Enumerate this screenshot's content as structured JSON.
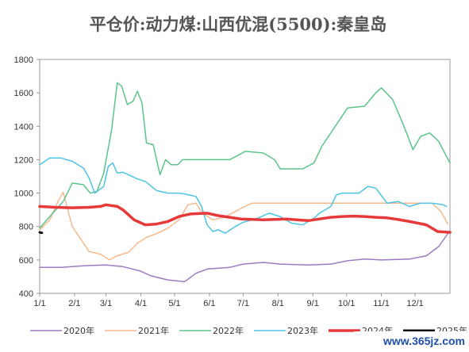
{
  "chart_data": {
    "type": "line",
    "title": "平仓价:动力煤:山西优混(5500):秦皇岛",
    "xlabel": "",
    "ylabel": "",
    "ylim": [
      400,
      1800
    ],
    "yticks": [
      400,
      600,
      800,
      1000,
      1200,
      1400,
      1600,
      1800
    ],
    "xlim": [
      1,
      366
    ],
    "xticks": [
      {
        "day": 1,
        "label": "1/1"
      },
      {
        "day": 32,
        "label": "2/1"
      },
      {
        "day": 60,
        "label": "3/1"
      },
      {
        "day": 91,
        "label": "4/1"
      },
      {
        "day": 121,
        "label": "5/1"
      },
      {
        "day": 152,
        "label": "6/1"
      },
      {
        "day": 182,
        "label": "7/1"
      },
      {
        "day": 213,
        "label": "8/1"
      },
      {
        "day": 244,
        "label": "9/1"
      },
      {
        "day": 274,
        "label": "10/1"
      },
      {
        "day": 305,
        "label": "11/1"
      },
      {
        "day": 335,
        "label": "12/1"
      }
    ],
    "grid": {
      "x": false,
      "y": false
    },
    "legend_position": "bottom",
    "x_unit": "day of year",
    "series": [
      {
        "name": "2020年",
        "color": "#9b7bc2",
        "width": 1.5,
        "points": [
          [
            1,
            555
          ],
          [
            20,
            555
          ],
          [
            40,
            565
          ],
          [
            60,
            570
          ],
          [
            75,
            560
          ],
          [
            90,
            535
          ],
          [
            100,
            505
          ],
          [
            115,
            480
          ],
          [
            130,
            470
          ],
          [
            140,
            520
          ],
          [
            150,
            545
          ],
          [
            170,
            555
          ],
          [
            182,
            575
          ],
          [
            200,
            585
          ],
          [
            215,
            575
          ],
          [
            240,
            570
          ],
          [
            260,
            575
          ],
          [
            275,
            595
          ],
          [
            290,
            605
          ],
          [
            305,
            600
          ],
          [
            330,
            605
          ],
          [
            345,
            625
          ],
          [
            356,
            680
          ],
          [
            366,
            775
          ]
        ]
      },
      {
        "name": "2021年",
        "color": "#f5b98c",
        "width": 1.5,
        "points": [
          [
            1,
            780
          ],
          [
            10,
            840
          ],
          [
            18,
            960
          ],
          [
            22,
            1005
          ],
          [
            26,
            900
          ],
          [
            30,
            800
          ],
          [
            38,
            720
          ],
          [
            45,
            650
          ],
          [
            55,
            635
          ],
          [
            63,
            600
          ],
          [
            70,
            625
          ],
          [
            80,
            645
          ],
          [
            88,
            700
          ],
          [
            96,
            735
          ],
          [
            106,
            760
          ],
          [
            115,
            790
          ],
          [
            125,
            840
          ],
          [
            133,
            930
          ],
          [
            140,
            940
          ],
          [
            146,
            880
          ],
          [
            155,
            840
          ],
          [
            165,
            855
          ],
          [
            175,
            890
          ],
          [
            182,
            915
          ],
          [
            190,
            940
          ],
          [
            210,
            940
          ],
          [
            230,
            940
          ],
          [
            250,
            940
          ],
          [
            270,
            940
          ],
          [
            290,
            940
          ],
          [
            310,
            940
          ],
          [
            330,
            940
          ],
          [
            350,
            940
          ],
          [
            358,
            890
          ],
          [
            364,
            815
          ]
        ]
      },
      {
        "name": "2022年",
        "color": "#5bc48a",
        "width": 1.5,
        "points": [
          [
            1,
            790
          ],
          [
            10,
            860
          ],
          [
            22,
            950
          ],
          [
            30,
            1060
          ],
          [
            40,
            1050
          ],
          [
            46,
            1000
          ],
          [
            52,
            1010
          ],
          [
            58,
            1120
          ],
          [
            65,
            1380
          ],
          [
            70,
            1660
          ],
          [
            74,
            1640
          ],
          [
            79,
            1530
          ],
          [
            84,
            1550
          ],
          [
            88,
            1610
          ],
          [
            92,
            1540
          ],
          [
            96,
            1300
          ],
          [
            102,
            1290
          ],
          [
            108,
            1110
          ],
          [
            113,
            1200
          ],
          [
            118,
            1170
          ],
          [
            124,
            1170
          ],
          [
            128,
            1200
          ],
          [
            150,
            1200
          ],
          [
            170,
            1200
          ],
          [
            184,
            1250
          ],
          [
            200,
            1240
          ],
          [
            210,
            1200
          ],
          [
            215,
            1145
          ],
          [
            235,
            1145
          ],
          [
            245,
            1180
          ],
          [
            252,
            1280
          ],
          [
            262,
            1380
          ],
          [
            270,
            1460
          ],
          [
            275,
            1510
          ],
          [
            290,
            1520
          ],
          [
            300,
            1600
          ],
          [
            305,
            1630
          ],
          [
            315,
            1560
          ],
          [
            322,
            1450
          ],
          [
            328,
            1350
          ],
          [
            333,
            1260
          ],
          [
            340,
            1340
          ],
          [
            348,
            1360
          ],
          [
            356,
            1310
          ],
          [
            366,
            1180
          ]
        ]
      },
      {
        "name": "2023年",
        "color": "#4cc4e6",
        "width": 1.5,
        "points": [
          [
            1,
            1170
          ],
          [
            10,
            1210
          ],
          [
            20,
            1210
          ],
          [
            30,
            1190
          ],
          [
            40,
            1150
          ],
          [
            45,
            1090
          ],
          [
            50,
            1000
          ],
          [
            58,
            1040
          ],
          [
            62,
            1160
          ],
          [
            66,
            1180
          ],
          [
            70,
            1120
          ],
          [
            75,
            1125
          ],
          [
            80,
            1110
          ],
          [
            88,
            1085
          ],
          [
            95,
            1070
          ],
          [
            105,
            1015
          ],
          [
            115,
            1000
          ],
          [
            125,
            1000
          ],
          [
            130,
            995
          ],
          [
            140,
            980
          ],
          [
            145,
            920
          ],
          [
            150,
            810
          ],
          [
            155,
            770
          ],
          [
            160,
            780
          ],
          [
            166,
            760
          ],
          [
            175,
            800
          ],
          [
            182,
            825
          ],
          [
            195,
            850
          ],
          [
            205,
            880
          ],
          [
            215,
            860
          ],
          [
            225,
            820
          ],
          [
            235,
            810
          ],
          [
            240,
            830
          ],
          [
            245,
            850
          ],
          [
            250,
            880
          ],
          [
            260,
            920
          ],
          [
            265,
            990
          ],
          [
            270,
            1000
          ],
          [
            285,
            1000
          ],
          [
            293,
            1040
          ],
          [
            300,
            1030
          ],
          [
            310,
            940
          ],
          [
            320,
            950
          ],
          [
            330,
            920
          ],
          [
            340,
            940
          ],
          [
            350,
            940
          ],
          [
            360,
            930
          ],
          [
            363,
            920
          ]
        ]
      },
      {
        "name": "2024年",
        "color": "#e8393a",
        "width": 3.5,
        "points": [
          [
            1,
            920
          ],
          [
            15,
            915
          ],
          [
            30,
            912
          ],
          [
            45,
            915
          ],
          [
            55,
            920
          ],
          [
            60,
            930
          ],
          [
            70,
            920
          ],
          [
            75,
            900
          ],
          [
            85,
            840
          ],
          [
            95,
            810
          ],
          [
            105,
            815
          ],
          [
            115,
            830
          ],
          [
            125,
            860
          ],
          [
            135,
            875
          ],
          [
            150,
            880
          ],
          [
            160,
            865
          ],
          [
            170,
            855
          ],
          [
            180,
            845
          ],
          [
            200,
            840
          ],
          [
            220,
            845
          ],
          [
            240,
            835
          ],
          [
            250,
            845
          ],
          [
            260,
            855
          ],
          [
            270,
            860
          ],
          [
            280,
            862
          ],
          [
            290,
            860
          ],
          [
            300,
            855
          ],
          [
            310,
            852
          ],
          [
            320,
            842
          ],
          [
            330,
            830
          ],
          [
            345,
            810
          ],
          [
            355,
            770
          ],
          [
            366,
            765
          ]
        ]
      },
      {
        "name": "2025年",
        "color": "#111111",
        "width": 3,
        "points": [
          [
            1,
            765
          ],
          [
            3,
            762
          ]
        ]
      }
    ]
  },
  "watermark": "www.365jz.com"
}
